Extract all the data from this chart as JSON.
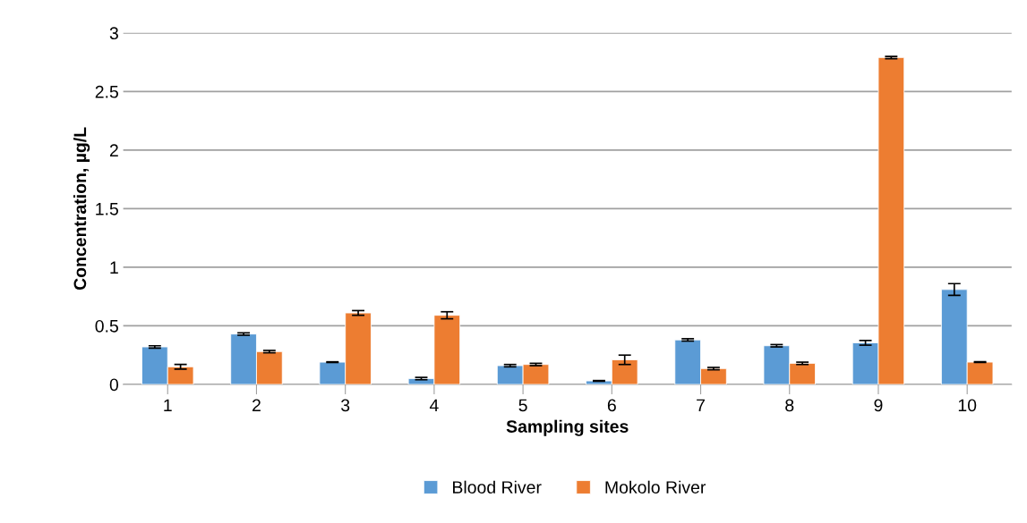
{
  "chart_data": {
    "type": "bar",
    "xlabel": "Sampling sites",
    "ylabel": "Concentration, µg/L",
    "categories": [
      "1",
      "2",
      "3",
      "4",
      "5",
      "6",
      "7",
      "8",
      "9",
      "10"
    ],
    "series": [
      {
        "name": "Blood River",
        "color": "#5b9bd5",
        "values": [
          0.32,
          0.43,
          0.19,
          0.05,
          0.16,
          0.03,
          0.38,
          0.33,
          0.355,
          0.81
        ],
        "errors": [
          0.01,
          0.01,
          0.003,
          0.01,
          0.01,
          0.003,
          0.01,
          0.01,
          0.02,
          0.05
        ]
      },
      {
        "name": "Mokolo River",
        "color": "#ed7d31",
        "values": [
          0.15,
          0.28,
          0.61,
          0.59,
          0.17,
          0.21,
          0.135,
          0.18,
          2.79,
          0.19
        ],
        "errors": [
          0.02,
          0.01,
          0.02,
          0.03,
          0.01,
          0.04,
          0.01,
          0.01,
          0.01,
          0.003
        ]
      }
    ],
    "ylim": [
      0,
      3
    ],
    "yticks": [
      0,
      0.5,
      1,
      1.5,
      2,
      2.5,
      3
    ],
    "grid": "y",
    "legend": "bottom"
  }
}
